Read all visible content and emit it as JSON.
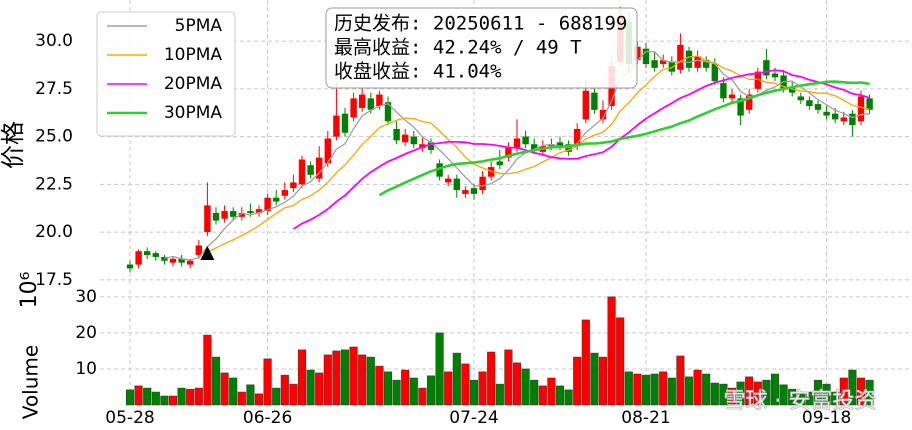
{
  "chart_data": {
    "type": "candlestick",
    "categories": [
      "05-28",
      null,
      null,
      null,
      null,
      null,
      null,
      null,
      null,
      null,
      null,
      null,
      null,
      null,
      null,
      null,
      "06-26",
      null,
      null,
      null,
      null,
      null,
      null,
      null,
      null,
      null,
      null,
      null,
      null,
      null,
      null,
      null,
      null,
      null,
      null,
      null,
      null,
      null,
      null,
      null,
      "07-24",
      null,
      null,
      null,
      null,
      null,
      null,
      null,
      null,
      null,
      null,
      null,
      null,
      null,
      null,
      null,
      null,
      null,
      null,
      null,
      "08-21",
      null,
      null,
      null,
      null,
      null,
      null,
      null,
      null,
      null,
      null,
      null,
      null,
      null,
      null,
      null,
      null,
      null,
      null,
      null,
      null,
      "09-18",
      null,
      null,
      null,
      null,
      null
    ],
    "open": [
      18.3,
      18.3,
      19.0,
      18.9,
      18.7,
      18.4,
      18.6,
      18.3,
      18.8,
      20.0,
      21.0,
      20.7,
      21.1,
      20.8,
      21.1,
      21.0,
      21.1,
      21.8,
      21.9,
      22.3,
      22.5,
      23.5,
      22.8,
      23.6,
      25.0,
      26.2,
      26.0,
      26.5,
      27.0,
      26.6,
      26.8,
      25.4,
      24.7,
      25.0,
      24.4,
      24.7,
      23.6,
      22.6,
      22.8,
      22.0,
      22.3,
      22.2,
      22.9,
      23.7,
      23.9,
      24.4,
      25.0,
      24.6,
      24.2,
      24.5,
      24.7,
      24.6,
      24.5,
      25.9,
      27.3,
      25.9,
      26.6,
      28.9,
      31.0,
      29.0,
      29.6,
      29.0,
      28.8,
      28.9,
      28.5,
      29.5,
      28.6,
      29.0,
      28.8,
      27.8,
      27.0,
      27.0,
      26.4,
      27.5,
      29.0,
      28.3,
      28.2,
      27.6,
      27.1,
      26.9,
      26.7,
      26.3,
      26.2,
      25.8,
      26.2,
      25.8,
      27.0
    ],
    "high": [
      18.5,
      19.1,
      19.2,
      19.0,
      18.8,
      18.7,
      18.8,
      18.6,
      19.6,
      22.6,
      21.3,
      21.4,
      21.3,
      21.3,
      21.5,
      21.4,
      22.0,
      22.2,
      22.6,
      23.0,
      24.0,
      23.7,
      24.5,
      25.3,
      27.8,
      26.5,
      27.3,
      27.6,
      27.3,
      27.4,
      27.1,
      25.8,
      25.4,
      25.3,
      25.0,
      24.9,
      23.8,
      23.0,
      23.0,
      22.4,
      22.5,
      23.2,
      23.7,
      24.3,
      24.7,
      25.9,
      25.3,
      24.9,
      24.8,
      24.9,
      25.0,
      24.8,
      25.7,
      28.0,
      27.6,
      26.9,
      29.0,
      31.8,
      31.5,
      30.0,
      29.9,
      29.4,
      29.3,
      29.2,
      30.4,
      29.7,
      29.5,
      29.2,
      29.1,
      28.1,
      27.5,
      27.2,
      27.5,
      28.6,
      29.6,
      28.6,
      28.5,
      27.9,
      27.3,
      27.1,
      26.9,
      26.6,
      26.5,
      26.3,
      26.4,
      27.4,
      27.2
    ],
    "low": [
      17.9,
      18.1,
      18.6,
      18.5,
      18.3,
      18.2,
      18.2,
      18.1,
      18.6,
      19.8,
      20.4,
      20.5,
      20.6,
      20.6,
      20.8,
      20.8,
      20.9,
      21.4,
      21.7,
      22.1,
      22.3,
      22.8,
      22.6,
      23.4,
      24.8,
      25.0,
      25.8,
      26.3,
      26.2,
      26.4,
      25.6,
      24.6,
      24.5,
      24.4,
      24.2,
      24.1,
      22.7,
      22.4,
      21.8,
      21.8,
      21.7,
      22.0,
      22.7,
      23.3,
      23.7,
      24.2,
      24.4,
      24.1,
      24.0,
      24.3,
      24.3,
      24.0,
      24.3,
      25.7,
      26.2,
      25.7,
      26.4,
      28.7,
      28.4,
      28.8,
      28.6,
      28.4,
      28.6,
      28.2,
      28.3,
      28.4,
      28.4,
      28.4,
      27.7,
      26.8,
      26.8,
      25.6,
      26.2,
      27.3,
      28.0,
      27.9,
      27.3,
      27.1,
      26.7,
      26.4,
      26.2,
      25.9,
      25.7,
      25.6,
      25.0,
      25.6,
      26.2
    ],
    "close": [
      18.1,
      19.0,
      18.8,
      18.7,
      18.5,
      18.6,
      18.4,
      18.5,
      19.3,
      21.4,
      20.6,
      21.1,
      20.8,
      21.0,
      21.0,
      21.2,
      21.8,
      21.6,
      22.2,
      22.6,
      23.8,
      23.0,
      23.9,
      24.9,
      26.1,
      25.2,
      27.0,
      27.2,
      26.4,
      27.2,
      25.8,
      24.8,
      25.1,
      24.6,
      24.6,
      24.3,
      22.9,
      22.8,
      22.2,
      22.2,
      22.0,
      22.9,
      23.4,
      23.5,
      24.4,
      24.9,
      24.6,
      24.3,
      24.5,
      24.6,
      24.5,
      24.2,
      25.4,
      27.4,
      26.4,
      26.4,
      28.7,
      31.3,
      28.8,
      29.7,
      28.8,
      28.6,
      29.0,
      28.4,
      29.8,
      28.6,
      29.2,
      28.6,
      27.9,
      27.0,
      27.2,
      26.1,
      27.2,
      28.4,
      28.2,
      28.1,
      27.5,
      27.3,
      26.9,
      26.6,
      26.4,
      26.1,
      25.9,
      26.0,
      25.6,
      27.1,
      26.4
    ],
    "up_color": "#ff0000",
    "down_color": "#008000",
    "ylabel": "价格",
    "ylim": [
      17.23,
      32.15
    ],
    "yticks": [
      17.5,
      {
        "value": 20,
        "label": "20.0"
      },
      22.5,
      {
        "value": 25,
        "label": "25.0"
      },
      27.5,
      {
        "value": 30,
        "label": "30.0"
      }
    ],
    "grid": true,
    "legend": "upper left",
    "series": [
      {
        "name": "5PMA",
        "color": "#a0a0a0",
        "values": [
          null,
          null,
          null,
          null,
          18.62,
          18.72,
          18.6,
          18.54,
          18.66,
          19.24,
          19.64,
          20.18,
          20.64,
          20.98,
          20.9,
          21.02,
          21.16,
          21.32,
          21.56,
          21.88,
          22.4,
          22.64,
          23.1,
          23.64,
          24.34,
          24.62,
          25.42,
          26.08,
          26.38,
          26.6,
          26.72,
          26.28,
          25.86,
          25.5,
          24.98,
          24.68,
          24.3,
          23.84,
          23.36,
          22.88,
          22.42,
          22.42,
          22.54,
          22.8,
          23.24,
          23.82,
          24.16,
          24.34,
          24.54,
          24.58,
          24.5,
          24.42,
          24.64,
          25.22,
          25.58,
          25.96,
          26.86,
          28.04,
          28.32,
          28.98,
          29.46,
          29.44,
          28.98,
          28.9,
          28.92,
          28.88,
          29.0,
          28.92,
          28.82,
          28.26,
          27.98,
          27.36,
          27.08,
          27.18,
          27.42,
          27.6,
          27.88,
          27.9,
          27.6,
          27.28,
          26.94,
          26.66,
          26.38,
          26.2,
          26.0,
          26.14,
          26.2
        ]
      },
      {
        "name": "10PMA",
        "color": "#ffa500",
        "values": [
          null,
          null,
          null,
          null,
          null,
          null,
          null,
          null,
          null,
          18.93,
          19.18,
          19.39,
          19.59,
          19.82,
          20.07,
          20.33,
          20.67,
          20.98,
          21.27,
          21.39,
          21.71,
          21.9,
          22.21,
          22.6,
          23.11,
          23.51,
          24.03,
          24.59,
          25.01,
          25.47,
          25.67,
          25.85,
          25.97,
          25.94,
          25.79,
          25.7,
          25.29,
          24.85,
          24.43,
          23.93,
          23.55,
          23.36,
          23.19,
          23.08,
          23.06,
          23.12,
          23.29,
          23.44,
          23.67,
          23.91,
          24.16,
          24.29,
          24.49,
          24.88,
          25.08,
          25.23,
          25.64,
          26.34,
          26.77,
          27.28,
          27.71,
          28.15,
          28.51,
          28.61,
          28.95,
          29.17,
          29.22,
          28.95,
          28.86,
          28.59,
          28.43,
          28.18,
          28.0,
          28.0,
          27.84,
          27.79,
          27.62,
          27.49,
          27.39,
          27.35,
          27.27,
          27.27,
          27.14,
          26.9,
          26.64,
          26.54,
          26.43
        ]
      },
      {
        "name": "20PMA",
        "color": "#ff00ff",
        "values": [
          null,
          null,
          null,
          null,
          null,
          null,
          null,
          null,
          null,
          null,
          null,
          null,
          null,
          null,
          null,
          null,
          null,
          null,
          null,
          20.16,
          20.45,
          20.65,
          20.9,
          21.21,
          21.59,
          21.92,
          22.35,
          22.79,
          23.14,
          23.43,
          23.69,
          23.88,
          24.09,
          24.27,
          24.45,
          24.61,
          24.66,
          24.72,
          24.72,
          24.7,
          24.61,
          24.61,
          24.58,
          24.51,
          24.43,
          24.41,
          24.29,
          24.15,
          24.05,
          23.92,
          23.86,
          23.83,
          23.84,
          23.98,
          24.07,
          24.18,
          24.47,
          24.89,
          25.22,
          25.6,
          25.94,
          26.22,
          26.5,
          26.75,
          27.02,
          27.2,
          27.43,
          27.65,
          27.82,
          27.94,
          28.07,
          28.17,
          28.26,
          28.31,
          28.4,
          28.48,
          28.42,
          28.22,
          28.13,
          27.97,
          27.85,
          27.73,
          27.57,
          27.45,
          27.24,
          27.17,
          27.03
        ]
      },
      {
        "name": "30PMA",
        "color": "#32cd32",
        "values": [
          null,
          null,
          null,
          null,
          null,
          null,
          null,
          null,
          null,
          null,
          null,
          null,
          null,
          null,
          null,
          null,
          null,
          null,
          null,
          null,
          null,
          null,
          null,
          null,
          null,
          null,
          null,
          null,
          null,
          21.93,
          22.19,
          22.38,
          22.59,
          22.79,
          22.99,
          23.18,
          23.33,
          23.47,
          23.57,
          23.6,
          23.64,
          23.7,
          23.79,
          23.87,
          23.99,
          24.11,
          24.2,
          24.29,
          24.37,
          24.44,
          24.46,
          24.5,
          24.55,
          24.63,
          24.64,
          24.68,
          24.74,
          24.88,
          24.96,
          25.04,
          25.14,
          25.27,
          25.4,
          25.52,
          25.7,
          25.84,
          26.05,
          26.24,
          26.43,
          26.59,
          26.77,
          26.87,
          27.0,
          27.16,
          27.29,
          27.4,
          27.49,
          27.59,
          27.67,
          27.74,
          27.8,
          27.87,
          27.88,
          27.84,
          27.81,
          27.83,
          27.76
        ]
      }
    ],
    "signals": [
      {
        "at": 9,
        "value": 18.85
      }
    ],
    "volume": {
      "ylabel": "Volume",
      "offset_label": "10⁶",
      "ylim": [
        0,
        31.9
      ],
      "yticks": [
        10,
        20,
        30
      ],
      "values": [
        4.2,
        5.3,
        4.7,
        3.6,
        2.5,
        2.5,
        4.7,
        4.4,
        4.7,
        19.4,
        13.3,
        8.9,
        7.5,
        3.6,
        5.6,
        3.1,
        12.8,
        4.7,
        8.3,
        5.8,
        15.3,
        9.7,
        8.9,
        13.9,
        15.0,
        15.3,
        16.1,
        13.9,
        13.3,
        10.8,
        9.2,
        6.9,
        9.7,
        7.5,
        4.7,
        8.1,
        20.0,
        9.2,
        14.4,
        11.4,
        6.9,
        9.2,
        14.7,
        5.8,
        15.3,
        11.7,
        10.0,
        6.9,
        5.3,
        7.5,
        5.3,
        4.2,
        13.3,
        23.6,
        14.4,
        13.3,
        30.0,
        24.2,
        9.2,
        8.6,
        8.3,
        8.6,
        9.2,
        7.5,
        13.6,
        7.8,
        9.7,
        8.6,
        6.1,
        5.8,
        4.7,
        6.4,
        7.8,
        6.4,
        6.9,
        8.6,
        5.6,
        4.4,
        3.6,
        3.6,
        6.9,
        5.8,
        3.6,
        7.5,
        9.7,
        7.5,
        6.9
      ]
    },
    "info_box": [
      "历史发布: 20250611 - 688199",
      "最高收益: 42.24% / 49 T",
      "收盘收益: 41.04%"
    ],
    "watermark": "雪球 · 安富投资"
  }
}
